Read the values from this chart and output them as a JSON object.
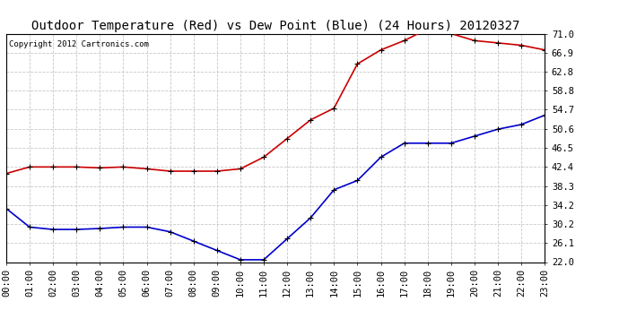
{
  "title": "Outdoor Temperature (Red) vs Dew Point (Blue) (24 Hours) 20120327",
  "copyright": "Copyright 2012 Cartronics.com",
  "hours": [
    0,
    1,
    2,
    3,
    4,
    5,
    6,
    7,
    8,
    9,
    10,
    11,
    12,
    13,
    14,
    15,
    16,
    17,
    18,
    19,
    20,
    21,
    22,
    23
  ],
  "temp_red": [
    41.0,
    42.4,
    42.4,
    42.4,
    42.2,
    42.4,
    42.0,
    41.5,
    41.5,
    41.5,
    42.0,
    44.5,
    48.5,
    52.5,
    55.0,
    64.5,
    67.5,
    69.5,
    72.0,
    71.0,
    69.5,
    69.0,
    68.5,
    67.5
  ],
  "dew_blue": [
    33.5,
    29.5,
    29.0,
    29.0,
    29.2,
    29.5,
    29.5,
    28.5,
    26.5,
    24.5,
    22.5,
    22.5,
    27.0,
    31.5,
    37.5,
    39.5,
    44.5,
    47.5,
    47.5,
    47.5,
    49.0,
    50.5,
    51.5,
    53.5
  ],
  "ylim": [
    22.0,
    71.0
  ],
  "yticks": [
    22.0,
    26.1,
    30.2,
    34.2,
    38.3,
    42.4,
    46.5,
    50.6,
    54.7,
    58.8,
    62.8,
    66.9,
    71.0
  ],
  "background_color": "#ffffff",
  "plot_bg_color": "#ffffff",
  "grid_color": "#c8c8c8",
  "red_color": "#cc0000",
  "blue_color": "#0000cc",
  "title_fontsize": 10,
  "copyright_fontsize": 6.5,
  "tick_fontsize": 7.5
}
